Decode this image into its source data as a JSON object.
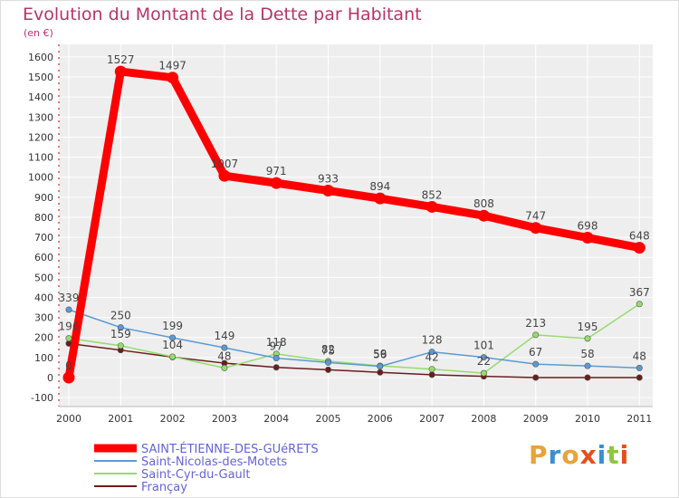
{
  "header": {
    "title": "Evolution du Montant de la Dette par Habitant",
    "subtitle": "(en €)"
  },
  "logo": {
    "text": "Proxiti",
    "colors": [
      "#e8a33a",
      "#3a8fd1",
      "#e8a33a",
      "#e94e1b",
      "#3a8fd1",
      "#8dc63f",
      "#e94e1b"
    ]
  },
  "chart_data": {
    "type": "line",
    "x": [
      "2000",
      "2001",
      "2002",
      "2003",
      "2004",
      "2005",
      "2006",
      "2007",
      "2008",
      "2009",
      "2010",
      "2011"
    ],
    "ylim": [
      -100,
      1600
    ],
    "yticks": [
      -100,
      0,
      100,
      200,
      300,
      400,
      500,
      600,
      700,
      800,
      900,
      1000,
      1100,
      1200,
      1300,
      1400,
      1500,
      1600
    ],
    "grid": true,
    "legend_position": "bottom-left",
    "series": [
      {
        "name": "Françay",
        "color": "#6b1c1c",
        "values": [
          170,
          137,
          102,
          72,
          51,
          39,
          26,
          14,
          6,
          0,
          0,
          0
        ],
        "labels": [
          "",
          "",
          "",
          "",
          "",
          "",
          "",
          "",
          "",
          "",
          "",
          ""
        ]
      },
      {
        "name": "Saint-Cyr-du-Gault",
        "color": "#96dc6e",
        "values": [
          196,
          159,
          104,
          48,
          118,
          82,
          59,
          42,
          22,
          213,
          195,
          367
        ],
        "labels": [
          "196",
          "159",
          "104",
          "48",
          "118",
          "82",
          "59",
          "42",
          "22",
          "213",
          "195",
          "367"
        ]
      },
      {
        "name": "Saint-Nicolas-des-Motets",
        "color": "#5b9ad5",
        "values": [
          339,
          250,
          199,
          149,
          97,
          75,
          56,
          128,
          101,
          67,
          58,
          48
        ],
        "labels": [
          "339",
          "250",
          "199",
          "149",
          "97",
          "75",
          "56",
          "128",
          "101",
          "67",
          "58",
          "48"
        ]
      },
      {
        "name": "SAINT-ÉTIENNE-DES-GUéRETS",
        "color": "#ff0000",
        "values": [
          0,
          1527,
          1497,
          1007,
          971,
          933,
          894,
          852,
          808,
          747,
          698,
          648
        ],
        "labels": [
          "0",
          "1527",
          "1497",
          "1007",
          "971",
          "933",
          "894",
          "852",
          "808",
          "747",
          "698",
          "648"
        ]
      }
    ]
  }
}
